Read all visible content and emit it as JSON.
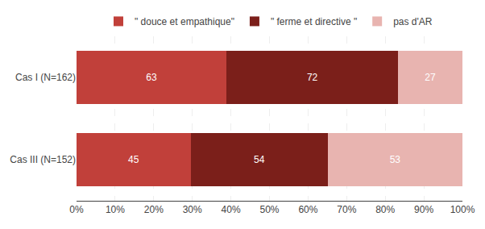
{
  "chart_data": {
    "type": "bar",
    "orientation": "horizontal",
    "stacked": true,
    "categories": [
      "Cas I (N=162)",
      "Cas III (N=152)"
    ],
    "series": [
      {
        "name": "\" douce et empathique\"",
        "color": "#c1403a",
        "values": [
          38.88888888888889,
          29.605263157894736
        ],
        "counts": [
          63,
          45
        ]
      },
      {
        "name": "\" ferme et directive \"",
        "color": "#7b1f1a",
        "values": [
          44.44444444444444,
          35.526315789473685
        ],
        "counts": [
          72,
          54
        ]
      },
      {
        "name": "pas d'AR",
        "color": "#e8b4b0",
        "values": [
          16.666666666666664,
          34.868421052631575
        ],
        "counts": [
          27,
          53
        ]
      }
    ],
    "xlim": [
      0,
      100
    ],
    "xticks": [
      {
        "value": 0,
        "label": "0%"
      },
      {
        "value": 10,
        "label": "10%"
      },
      {
        "value": 20,
        "label": "20%"
      },
      {
        "value": 30,
        "label": "30%"
      },
      {
        "value": 40,
        "label": "40%"
      },
      {
        "value": 50,
        "label": "50%"
      },
      {
        "value": 60,
        "label": "60%"
      },
      {
        "value": 70,
        "label": "70%"
      },
      {
        "value": 80,
        "label": "80%"
      },
      {
        "value": 90,
        "label": "90%"
      },
      {
        "value": 100,
        "label": "100%"
      }
    ],
    "grid": true,
    "legend": "top"
  }
}
